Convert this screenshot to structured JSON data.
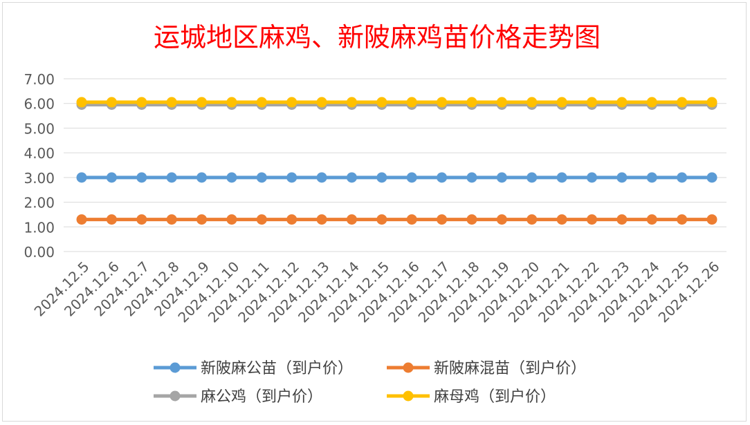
{
  "chart_data": {
    "type": "line",
    "title": "运城地区麻鸡、新陂麻鸡苗价格走势图",
    "title_color": "#ff0000",
    "xlabel": "",
    "ylabel": "",
    "ylim": [
      0,
      7
    ],
    "y_ticks": [
      "0.00",
      "1.00",
      "2.00",
      "3.00",
      "4.00",
      "5.00",
      "6.00",
      "7.00"
    ],
    "grid": true,
    "legend_position": "bottom",
    "x": [
      "2024.12.5",
      "2024.12.6",
      "2024.12.7",
      "2024.12.8",
      "2024.12.9",
      "2024.12.10",
      "2024.12.11",
      "2024.12.12",
      "2024.12.13",
      "2024.12.14",
      "2024.12.15",
      "2024.12.16",
      "2024.12.17",
      "2024.12.18",
      "2024.12.19",
      "2024.12.20",
      "2024.12.21",
      "2024.12.22",
      "2024.12.23",
      "2024.12.24",
      "2024.12.25",
      "2024.12.26"
    ],
    "series": [
      {
        "name": "新陂麻公苗（到户价）",
        "color": "#5b9bd5",
        "values": [
          3,
          3,
          3,
          3,
          3,
          3,
          3,
          3,
          3,
          3,
          3,
          3,
          3,
          3,
          3,
          3,
          3,
          3,
          3,
          3,
          3,
          3
        ]
      },
      {
        "name": "新陂麻混苗（到户价）",
        "color": "#ed7d31",
        "values": [
          1.3,
          1.3,
          1.3,
          1.3,
          1.3,
          1.3,
          1.3,
          1.3,
          1.3,
          1.3,
          1.3,
          1.3,
          1.3,
          1.3,
          1.3,
          1.3,
          1.3,
          1.3,
          1.3,
          1.3,
          1.3,
          1.3
        ]
      },
      {
        "name": "麻公鸡（到户价）",
        "color": "#a5a5a5",
        "values": [
          5.95,
          5.95,
          5.95,
          5.95,
          5.95,
          5.95,
          5.95,
          5.95,
          5.95,
          5.95,
          5.95,
          5.95,
          5.95,
          5.95,
          5.95,
          5.95,
          5.95,
          5.95,
          5.95,
          5.95,
          5.95,
          5.95
        ]
      },
      {
        "name": "麻母鸡（到户价）",
        "color": "#ffc000",
        "values": [
          6.05,
          6.05,
          6.05,
          6.05,
          6.05,
          6.05,
          6.05,
          6.05,
          6.05,
          6.05,
          6.05,
          6.05,
          6.05,
          6.05,
          6.05,
          6.05,
          6.05,
          6.05,
          6.05,
          6.05,
          6.05,
          6.05
        ]
      }
    ]
  }
}
